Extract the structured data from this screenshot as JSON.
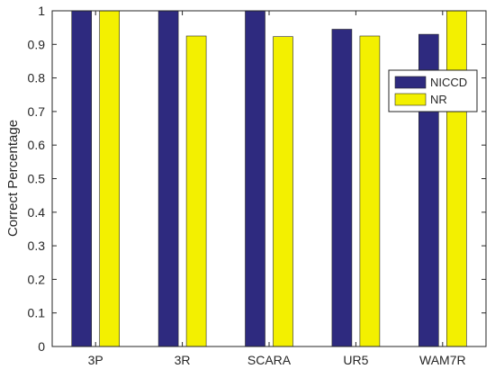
{
  "chart_data": {
    "type": "bar",
    "categories": [
      "3P",
      "3R",
      "SCARA",
      "UR5",
      "WAM7R"
    ],
    "series": [
      {
        "name": "NICCD",
        "values": [
          1.0,
          1.0,
          1.0,
          0.945,
          0.93
        ]
      },
      {
        "name": "NR",
        "values": [
          1.0,
          0.925,
          0.923,
          0.925,
          1.0
        ]
      }
    ],
    "xlabel": "",
    "ylabel": "Correct  Percentage",
    "ylim": [
      0,
      1
    ],
    "yticks": [
      0,
      0.1,
      0.2,
      0.3,
      0.4,
      0.5,
      0.6,
      0.7,
      0.8,
      0.9,
      1
    ],
    "ytick_labels": [
      "0",
      "0.1",
      "0.2",
      "0.3",
      "0.4",
      "0.5",
      "0.6",
      "0.7",
      "0.8",
      "0.9",
      "1"
    ],
    "grid": false,
    "legend_position": "top-right",
    "colors": {
      "NICCD": "#2e2a7f",
      "NR": "#f3f000",
      "axis": "#262626",
      "background": "#ffffff"
    }
  }
}
